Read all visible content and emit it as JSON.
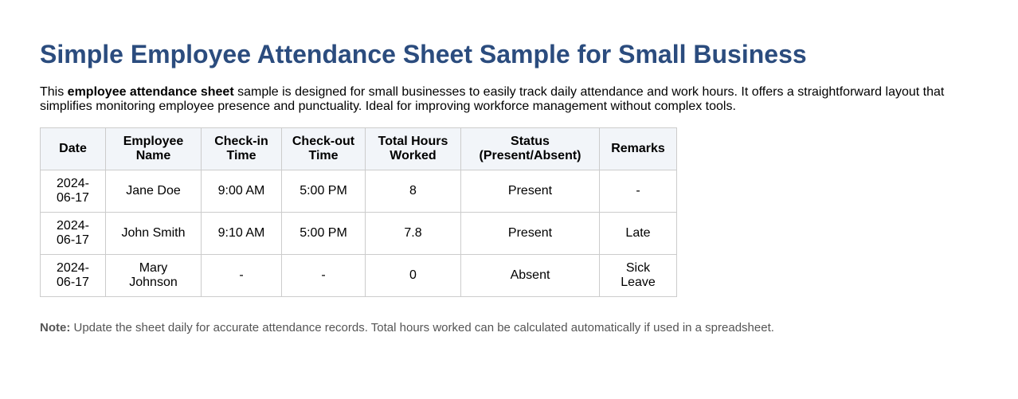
{
  "title": "Simple Employee Attendance Sheet Sample for Small Business",
  "intro": {
    "prefix": "This ",
    "bold": "employee attendance sheet",
    "suffix": " sample is designed for small businesses to easily track daily attendance and work hours. It offers a straightforward layout that simplifies monitoring employee presence and punctuality. Ideal for improving workforce management without complex tools."
  },
  "table": {
    "headers": [
      [
        "Date"
      ],
      [
        "Employee",
        "Name"
      ],
      [
        "Check-in",
        "Time"
      ],
      [
        "Check-out",
        "Time"
      ],
      [
        "Total Hours",
        "Worked"
      ],
      [
        "Status",
        "(Present/Absent)"
      ],
      [
        "Remarks"
      ]
    ],
    "rows": [
      [
        [
          "2024-",
          "06-17"
        ],
        [
          "Jane Doe"
        ],
        [
          "9:00 AM"
        ],
        [
          "5:00 PM"
        ],
        [
          "8"
        ],
        [
          "Present"
        ],
        [
          "-"
        ]
      ],
      [
        [
          "2024-",
          "06-17"
        ],
        [
          "John Smith"
        ],
        [
          "9:10 AM"
        ],
        [
          "5:00 PM"
        ],
        [
          "7.8"
        ],
        [
          "Present"
        ],
        [
          "Late"
        ]
      ],
      [
        [
          "2024-",
          "06-17"
        ],
        [
          "Mary",
          "Johnson"
        ],
        [
          "-"
        ],
        [
          "-"
        ],
        [
          "0"
        ],
        [
          "Absent"
        ],
        [
          "Sick",
          "Leave"
        ]
      ]
    ]
  },
  "note": {
    "label": "Note:",
    "text": " Update the sheet daily for accurate attendance records. Total hours worked can be calculated automatically if used in a spreadsheet."
  },
  "colors": {
    "title": "#2b4c7e",
    "header_bg": "#f2f5f9",
    "border": "#cccccc",
    "note_text": "#555555"
  }
}
